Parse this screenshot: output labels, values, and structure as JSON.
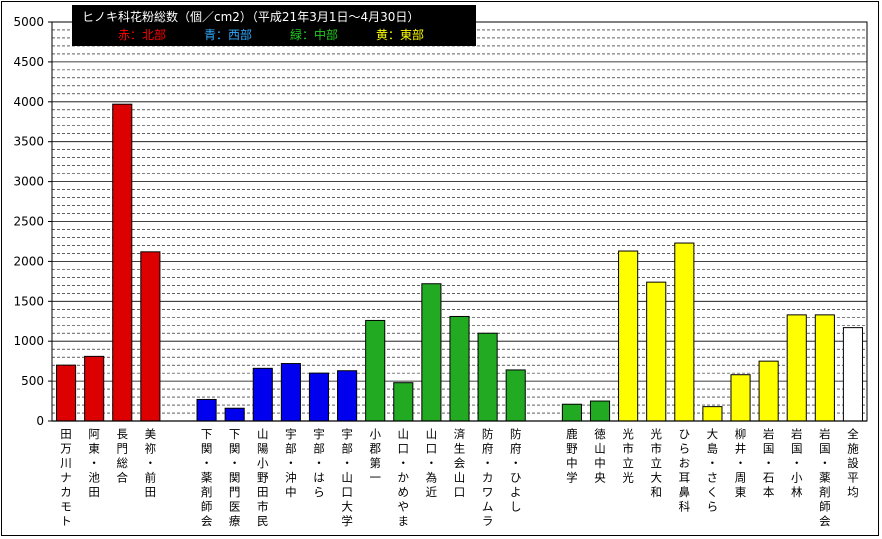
{
  "chart_data": {
    "type": "bar",
    "title": "ヒノキ科花粉総数（個／cm2）（平成21年3月1日〜4月30日）",
    "legend": [
      {
        "label": "赤：北部",
        "color": "#ff0000"
      },
      {
        "label": "青：西部",
        "color": "#33aaff"
      },
      {
        "label": "緑：中部",
        "color": "#22cc22"
      },
      {
        "label": "黄：東部",
        "color": "#ffff00"
      }
    ],
    "ylim": [
      0,
      5000
    ],
    "yticks": [
      0,
      500,
      1000,
      1500,
      2000,
      2500,
      3000,
      3500,
      4000,
      4500,
      5000
    ],
    "categories": [
      "田万川ナカモト",
      "阿東・池田",
      "長門総合",
      "美祢・前田",
      "",
      "下関・薬剤師会",
      "下関・関門医療",
      "山陽小野田市民",
      "宇部・沖中",
      "宇部・はら",
      "宇部・山口大学",
      "小郡第一",
      "山口・かめやま",
      "山口・為近",
      "済生会山口",
      "防府・カワムラ",
      "防府・ひよし",
      "",
      "鹿野中学",
      "徳山中央",
      "光市立光",
      "光市立大和",
      "ひらお耳鼻科",
      "大島・さくら",
      "柳井・周東",
      "岩国・石本",
      "岩国・小林",
      "岩国・薬剤師会",
      "全施設平均"
    ],
    "values": [
      700,
      810,
      3970,
      2120,
      null,
      270,
      160,
      660,
      720,
      600,
      630,
      1260,
      480,
      1720,
      1310,
      1100,
      640,
      null,
      210,
      250,
      2130,
      1740,
      2230,
      180,
      580,
      750,
      1330,
      1330,
      1170
    ],
    "colors": [
      "#dd0000",
      "#dd0000",
      "#dd0000",
      "#dd0000",
      "",
      "#0000ee",
      "#0000ee",
      "#0000ee",
      "#0000ee",
      "#0000ee",
      "#0000ee",
      "#22aa22",
      "#22aa22",
      "#22aa22",
      "#22aa22",
      "#22aa22",
      "#22aa22",
      "",
      "#22aa22",
      "#22aa22",
      "#ffff00",
      "#ffff00",
      "#ffff00",
      "#ffff00",
      "#ffff00",
      "#ffff00",
      "#ffff00",
      "#ffff00",
      "#ffffff"
    ]
  }
}
